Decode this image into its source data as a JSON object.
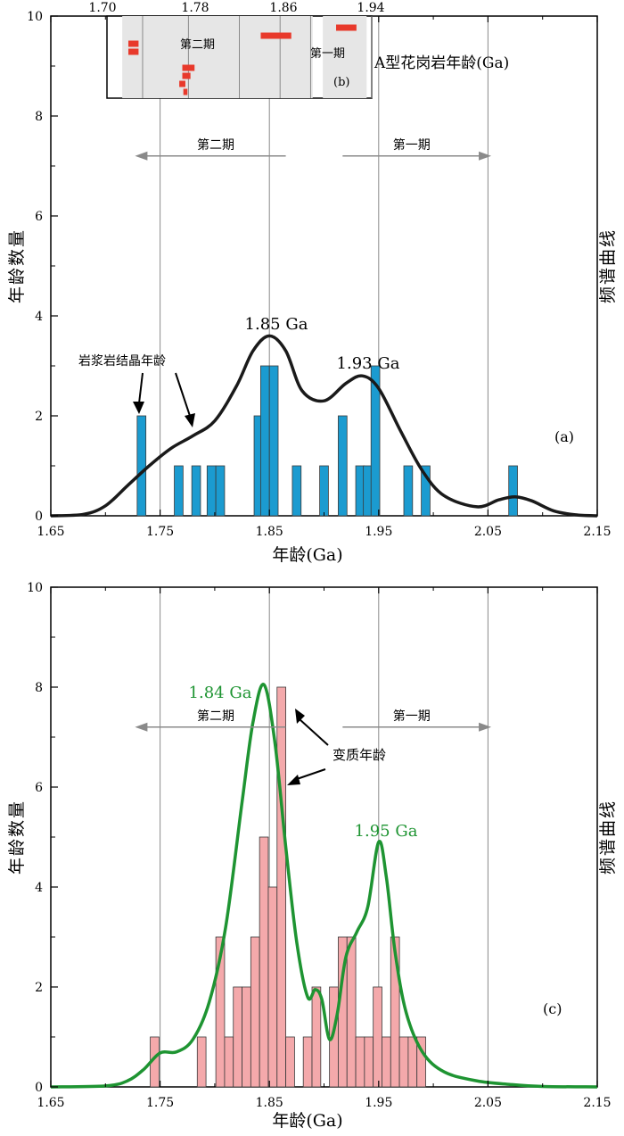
{
  "chart_data": [
    {
      "id": "a",
      "type": "bar",
      "panel_label": "(a)",
      "xlabel": "年龄(Ga)",
      "ylabel": "年龄数量",
      "y2label": "频谱曲线",
      "xlim": [
        1.65,
        2.15
      ],
      "ylim": [
        0,
        10
      ],
      "xticks": [
        "1.65",
        "1.75",
        "1.85",
        "1.95",
        "2.05",
        "2.15"
      ],
      "yticks": [
        "0",
        "2",
        "4",
        "6",
        "8",
        "10"
      ],
      "bar_width": 0.008,
      "bars": {
        "x": [
          1.733,
          1.767,
          1.783,
          1.797,
          1.805,
          1.84,
          1.846,
          1.854,
          1.875,
          1.9,
          1.917,
          1.933,
          1.94,
          1.947,
          1.977,
          1.993,
          2.073
        ],
        "values": [
          2,
          1,
          1,
          1,
          1,
          2,
          3,
          3,
          1,
          1,
          2,
          1,
          1,
          3,
          1,
          1,
          1
        ]
      },
      "bar_color": "#1b9bd0",
      "curve": {
        "name": "频谱曲线",
        "color": "#1a1a1a",
        "x": [
          1.65,
          1.68,
          1.7,
          1.72,
          1.74,
          1.76,
          1.78,
          1.8,
          1.82,
          1.835,
          1.85,
          1.865,
          1.88,
          1.9,
          1.92,
          1.935,
          1.95,
          1.97,
          1.99,
          2.01,
          2.04,
          2.06,
          2.075,
          2.09,
          2.11,
          2.13,
          2.15
        ],
        "y": [
          0,
          0.03,
          0.2,
          0.6,
          1.0,
          1.35,
          1.6,
          1.9,
          2.6,
          3.3,
          3.6,
          3.3,
          2.5,
          2.3,
          2.65,
          2.8,
          2.55,
          1.7,
          0.9,
          0.4,
          0.18,
          0.32,
          0.38,
          0.3,
          0.1,
          0.02,
          0
        ]
      },
      "vlines": [
        1.75,
        1.85,
        1.95,
        2.05
      ],
      "arrows": [
        {
          "label": "第二期",
          "from": 1.865,
          "to": 1.727,
          "y": 7.2
        },
        {
          "label": "第一期",
          "from": 1.917,
          "to": 2.053,
          "y": 7.2
        }
      ],
      "annotations": [
        {
          "text": "1.85 Ga",
          "x": 1.859,
          "y": 3.85
        },
        {
          "text": "1.93 Ga",
          "x": 1.942,
          "y": 3.05
        },
        {
          "text": "岩浆岩结晶年龄",
          "x": 1.737,
          "y": 3.3
        }
      ],
      "inset": {
        "id": "b",
        "panel_label": "(b)",
        "title": "A型花岗岩年龄(Ga)",
        "xlim": [
          1.7,
          1.96
        ],
        "xticks": [
          "1.70",
          "1.78",
          "1.86",
          "1.94"
        ],
        "color": "#e8392b",
        "phase_labels": [
          "第二期",
          "第一期"
        ],
        "ages": [
          {
            "age": 1.726,
            "err": 0.005,
            "row": 1
          },
          {
            "age": 1.726,
            "err": 0.005,
            "row": 2
          },
          {
            "age": 1.78,
            "err": 0.006,
            "row": 4
          },
          {
            "age": 1.778,
            "err": 0.004,
            "row": 5
          },
          {
            "age": 1.774,
            "err": 0.003,
            "row": 6
          },
          {
            "age": 1.777,
            "err": 0.002,
            "row": 7
          },
          {
            "age": 1.866,
            "err": 0.015,
            "row": 0
          },
          {
            "age": 1.935,
            "err": 0.01,
            "row": -1
          }
        ]
      }
    },
    {
      "id": "c",
      "type": "bar",
      "panel_label": "(c)",
      "xlabel": "年龄(Ga)",
      "ylabel": "年龄数量",
      "y2label": "频谱曲线",
      "xlim": [
        1.65,
        2.15
      ],
      "ylim": [
        0,
        10
      ],
      "xticks": [
        "1.65",
        "1.75",
        "1.85",
        "1.95",
        "2.05",
        "2.15"
      ],
      "yticks": [
        "0",
        "2",
        "4",
        "6",
        "8",
        "10"
      ],
      "bar_width": 0.008,
      "bars": {
        "x": [
          1.745,
          1.788,
          1.805,
          1.813,
          1.821,
          1.829,
          1.837,
          1.845,
          1.853,
          1.861,
          1.869,
          1.885,
          1.893,
          1.909,
          1.917,
          1.925,
          1.933,
          1.941,
          1.949,
          1.957,
          1.965,
          1.973,
          1.981,
          1.989
        ],
        "values": [
          1,
          1,
          3,
          1,
          2,
          2,
          3,
          5,
          4,
          8,
          1,
          1,
          2,
          2,
          3,
          3,
          1,
          1,
          2,
          1,
          3,
          1,
          1,
          1
        ]
      },
      "bar_color": "#f4a9ab",
      "curve": {
        "name": "频谱曲线",
        "color": "#1e9432",
        "x": [
          1.65,
          1.7,
          1.72,
          1.735,
          1.75,
          1.765,
          1.78,
          1.795,
          1.81,
          1.825,
          1.835,
          1.845,
          1.855,
          1.865,
          1.875,
          1.885,
          1.892,
          1.898,
          1.905,
          1.912,
          1.92,
          1.93,
          1.94,
          1.95,
          1.957,
          1.965,
          1.975,
          1.99,
          2.01,
          2.04,
          2.07,
          2.1,
          2.15
        ],
        "y": [
          0,
          0.02,
          0.12,
          0.35,
          0.68,
          0.7,
          0.95,
          1.7,
          3.2,
          5.7,
          7.3,
          8.05,
          6.9,
          4.8,
          2.9,
          1.8,
          1.95,
          1.75,
          0.95,
          1.45,
          2.6,
          3.1,
          3.6,
          4.9,
          4.2,
          2.7,
          1.5,
          0.7,
          0.3,
          0.12,
          0.05,
          0.01,
          0
        ]
      },
      "vlines": [
        1.75,
        1.85,
        1.95,
        2.05
      ],
      "arrows": [
        {
          "label": "第二期",
          "from": 1.865,
          "to": 1.727,
          "y": 7.2
        },
        {
          "label": "第一期",
          "from": 1.917,
          "to": 2.053,
          "y": 7.2
        }
      ],
      "annotations": [
        {
          "text": "1.84 Ga",
          "x": 1.818,
          "y": 8.25,
          "color": "#1e9432"
        },
        {
          "text": "1.95 Ga",
          "x": 1.955,
          "y": 5.0,
          "color": "#1e9432"
        },
        {
          "text": "变质年龄",
          "x": 1.895,
          "y": 6.7
        }
      ]
    }
  ]
}
